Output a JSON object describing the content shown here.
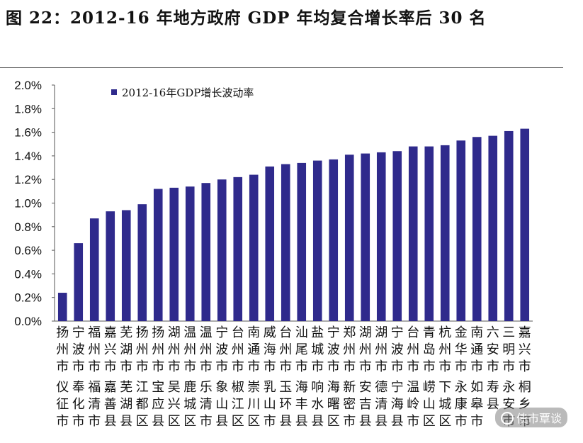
{
  "title": "图 22：2012-16 年地方政府 GDP 年均复合增长率后 30 名",
  "watermark": "债市覃谈",
  "colors": {
    "bar": "#2f2a8c",
    "axis": "#555555"
  },
  "chart_data": {
    "type": "bar",
    "title": "",
    "xlabel": "",
    "ylabel": "",
    "ylim": [
      0,
      0.02
    ],
    "ytick_labels": [
      "0.0%",
      "0.2%",
      "0.4%",
      "0.6%",
      "0.8%",
      "1.0%",
      "1.2%",
      "1.4%",
      "1.6%",
      "1.8%",
      "2.0%"
    ],
    "legend": {
      "position": "top-left",
      "entries": [
        "2012-16年GDP增长波动率"
      ]
    },
    "categories": [
      "扬州市仪征市",
      "宁波市奉化市",
      "福州市福清市",
      "嘉兴市嘉善县",
      "芜湖市芜湖县",
      "扬州市江都区",
      "扬州市宝应县",
      "湖州市吴兴区",
      "温州市鹿城区",
      "温州市乐清市",
      "宁波市象山县",
      "台州市椒江区",
      "南通市崇川区",
      "威海市乳山市",
      "台州市玉环县",
      "汕尾市海丰县",
      "盐城市响水县",
      "宁波市海曙区",
      "郑州市新密市",
      "湖州市安吉县",
      "湖州市德清县",
      "宁波市宁海县",
      "台州市温岭市",
      "青岛市崂山区",
      "杭州市下城区",
      "金华市永康市",
      "南通市如皋市",
      "六安市寿县",
      "三明市永安市",
      "嘉兴市桐乡市"
    ],
    "series": [
      {
        "name": "2012-16年GDP增长波动率",
        "values": [
          0.0024,
          0.0066,
          0.0087,
          0.0093,
          0.0094,
          0.0099,
          0.0112,
          0.0113,
          0.0114,
          0.0117,
          0.012,
          0.0122,
          0.0124,
          0.0131,
          0.0133,
          0.0134,
          0.0136,
          0.0137,
          0.0141,
          0.0142,
          0.0143,
          0.0144,
          0.0148,
          0.0148,
          0.0149,
          0.0153,
          0.0156,
          0.0157,
          0.0161,
          0.0163
        ]
      }
    ]
  }
}
